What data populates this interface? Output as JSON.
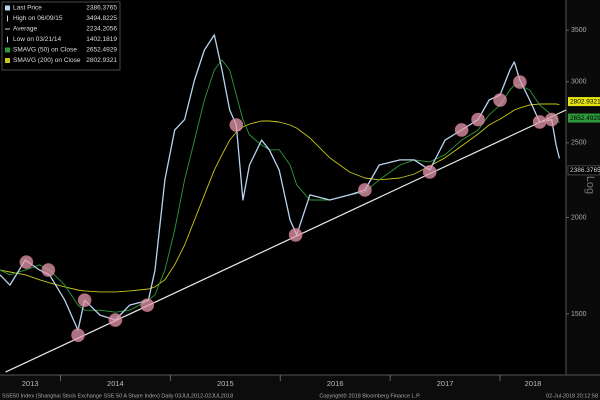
{
  "chart_data": {
    "type": "line",
    "yscale": "log",
    "ylim": [
      1250,
      3830
    ],
    "yticks": [
      1500,
      2000,
      2500,
      3000,
      3500
    ],
    "ylabel": "Log",
    "xlim": [
      2013.45,
      2018.6
    ],
    "xticks": [
      {
        "value": 2013,
        "label": "2013"
      },
      {
        "value": 2014,
        "label": "2014"
      },
      {
        "value": 2015,
        "label": "2015"
      },
      {
        "value": 2016,
        "label": "2016"
      },
      {
        "value": 2017,
        "label": "2017"
      },
      {
        "value": 2018,
        "label": "2018"
      }
    ],
    "x": [
      2013.45,
      2013.54,
      2013.68,
      2013.81,
      2013.9,
      2014.04,
      2014.16,
      2014.22,
      2014.36,
      2014.5,
      2014.63,
      2014.8,
      2014.86,
      2014.95,
      2015.04,
      2015.13,
      2015.22,
      2015.31,
      2015.4,
      2015.47,
      2015.54,
      2015.6,
      2015.66,
      2015.72,
      2015.83,
      2015.9,
      2015.99,
      2016.09,
      2016.15,
      2016.27,
      2016.45,
      2016.63,
      2016.77,
      2016.9,
      2017.09,
      2017.22,
      2017.36,
      2017.5,
      2017.65,
      2017.8,
      2017.9,
      2018.0,
      2018.09,
      2018.13,
      2018.18,
      2018.27,
      2018.36,
      2018.47,
      2018.51,
      2018.54
    ],
    "series": [
      {
        "name": "Last Price",
        "color": "#b8d4f0",
        "values": [
          1686,
          1635,
          1762,
          1710,
          1686,
          1563,
          1429,
          1563,
          1495,
          1473,
          1540,
          1563,
          1710,
          2239,
          2598,
          2680,
          3016,
          3299,
          3451,
          3108,
          2758,
          2637,
          2108,
          2340,
          2521,
          2449,
          2305,
          1985,
          1899,
          2140,
          2108,
          2140,
          2172,
          2340,
          2376,
          2376,
          2305,
          2521,
          2598,
          2680,
          2841,
          2884,
          3108,
          3184,
          3016,
          2841,
          2661,
          2680,
          2484,
          2386.3765
        ]
      },
      {
        "name": "SMAVG (50) on Close",
        "color": "#2f9a3a",
        "values": [
          1710,
          1686,
          1710,
          1737,
          1710,
          1635,
          1540,
          1517,
          1517,
          1508,
          1517,
          1563,
          1588,
          1710,
          1927,
          2239,
          2521,
          2841,
          3108,
          3202,
          3108,
          2884,
          2680,
          2560,
          2484,
          2449,
          2449,
          2340,
          2205,
          2108,
          2108,
          2140,
          2159,
          2239,
          2340,
          2376,
          2362,
          2413,
          2521,
          2598,
          2718,
          2800,
          2927,
          2971,
          2971,
          2927,
          2800,
          2718,
          2693,
          2652.4929
        ]
      },
      {
        "name": "SMAVG (200) on Close",
        "color": "#c9c817",
        "values": [
          1710,
          1700,
          1686,
          1661,
          1646,
          1626,
          1611,
          1607,
          1602,
          1602,
          1607,
          1616,
          1626,
          1661,
          1737,
          1843,
          1985,
          2140,
          2305,
          2413,
          2521,
          2582,
          2621,
          2645,
          2669,
          2669,
          2661,
          2637,
          2613,
          2537,
          2391,
          2292,
          2251,
          2239,
          2251,
          2278,
          2333,
          2391,
          2477,
          2567,
          2637,
          2685,
          2733,
          2758,
          2775,
          2800,
          2808,
          2808,
          2808,
          2802.9321
        ]
      }
    ],
    "stats": [
      {
        "label": "High on 06/09/15",
        "value": 3494.8225
      },
      {
        "label": "Average",
        "value": 2234.2056
      },
      {
        "label": "Low on 03/21/14",
        "value": 1402.1819
      }
    ],
    "trendline": {
      "color": "#e8e8e8",
      "x": [
        2013.5,
        2018.6
      ],
      "values": [
        1261,
        2758
      ]
    },
    "highlights": {
      "color": "#e59aae",
      "x": [
        2013.69,
        2013.89,
        2014.16,
        2014.22,
        2014.5,
        2014.79,
        2015.6,
        2016.14,
        2016.77,
        2017.36,
        2017.65,
        2017.8,
        2018.0,
        2018.18,
        2018.36,
        2018.47
      ],
      "values": [
        1751,
        1710,
        1408,
        1563,
        1473,
        1540,
        2637,
        1899,
        2172,
        2292,
        2598,
        2680,
        2841,
        2998,
        2661,
        2680
      ]
    },
    "footer": {
      "left": "SSE50 Index (Shanghai Stock Exchange SSE 50 A Share Index)   Daily 03JUL2012-02JUL2018",
      "center": "Copyright© 2018 Bloomberg Finance L.P.",
      "right": "02-Jul-2018 20:12:58"
    }
  }
}
